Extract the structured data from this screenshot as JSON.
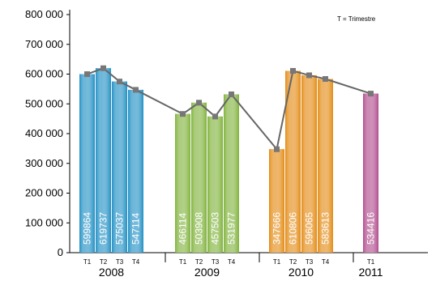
{
  "chart_data": {
    "type": "bar",
    "note": "T = Trimestre",
    "ylim": [
      0,
      800000
    ],
    "y_ticks": [
      0,
      100000,
      200000,
      300000,
      400000,
      500000,
      600000,
      700000,
      800000
    ],
    "y_tick_labels": [
      "0",
      "100 000",
      "200 000",
      "300 000",
      "400 000",
      "500 000",
      "600 000",
      "700 000",
      "800 000"
    ],
    "grid": false,
    "overlay_line": true,
    "groups": [
      {
        "year": "2008",
        "color": "#1f8fc4",
        "bars": [
          {
            "quarter": "T1",
            "value": 599864,
            "label": "599864"
          },
          {
            "quarter": "T2",
            "value": 619737,
            "label": "619737"
          },
          {
            "quarter": "T3",
            "value": 575037,
            "label": "575037"
          },
          {
            "quarter": "T4",
            "value": 547114,
            "label": "547114"
          }
        ]
      },
      {
        "year": "2009",
        "color": "#7fb23a",
        "bars": [
          {
            "quarter": "T1",
            "value": 466114,
            "label": "466114"
          },
          {
            "quarter": "T2",
            "value": 503908,
            "label": "503908"
          },
          {
            "quarter": "T3",
            "value": 457503,
            "label": "457503"
          },
          {
            "quarter": "T4",
            "value": 531977,
            "label": "531977"
          }
        ]
      },
      {
        "year": "2010",
        "color": "#e38a12",
        "bars": [
          {
            "quarter": "T1",
            "value": 347666,
            "label": "347666"
          },
          {
            "quarter": "T2",
            "value": 610806,
            "label": "610806"
          },
          {
            "quarter": "T3",
            "value": 596065,
            "label": "596065"
          },
          {
            "quarter": "T4",
            "value": 583613,
            "label": "583613"
          }
        ]
      },
      {
        "year": "2011",
        "color": "#b04a8c",
        "bars": [
          {
            "quarter": "T1",
            "value": 534416,
            "label": "534416"
          }
        ]
      }
    ]
  }
}
